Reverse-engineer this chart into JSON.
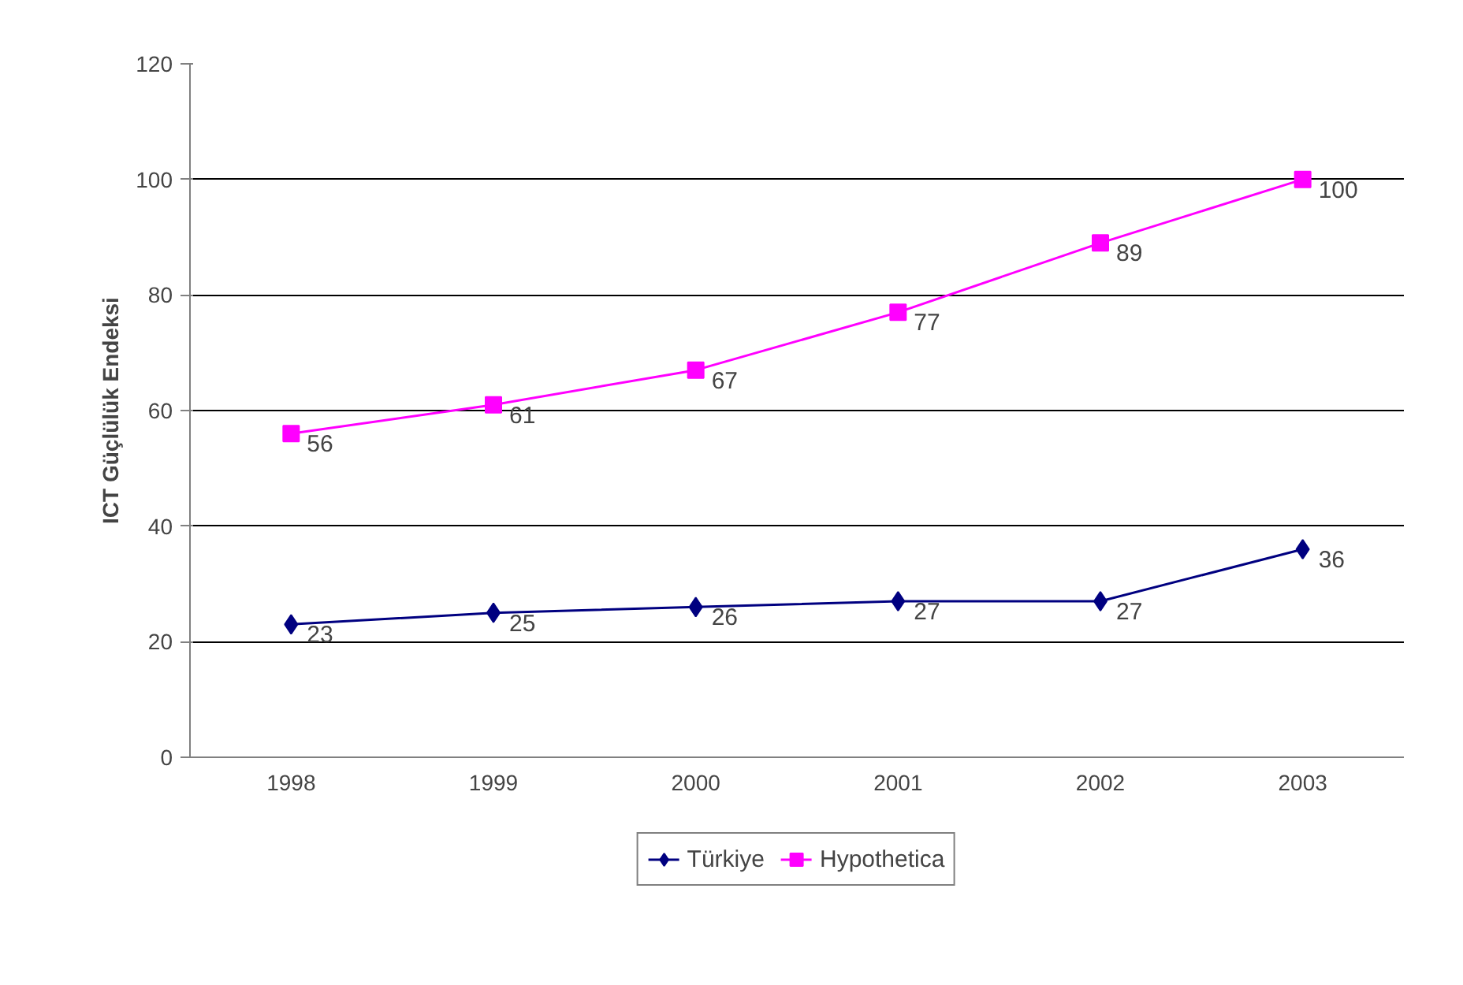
{
  "chart_data": {
    "type": "line",
    "ylabel": "ICT Güçlülük Endeksi",
    "categories": [
      "1998",
      "1999",
      "2000",
      "2001",
      "2002",
      "2003"
    ],
    "series": [
      {
        "name": "Türkiye",
        "color": "#000080",
        "marker": "diamond",
        "values": [
          23,
          25,
          26,
          27,
          27,
          36
        ]
      },
      {
        "name": "Hypothetica",
        "color": "#ff00ff",
        "marker": "square",
        "values": [
          56,
          61,
          67,
          77,
          89,
          100
        ]
      }
    ],
    "ylim": [
      0,
      120
    ],
    "yticks": [
      0,
      20,
      40,
      60,
      80,
      100,
      120
    ],
    "grid": "y",
    "legend": "bottom",
    "data_labels": true
  }
}
